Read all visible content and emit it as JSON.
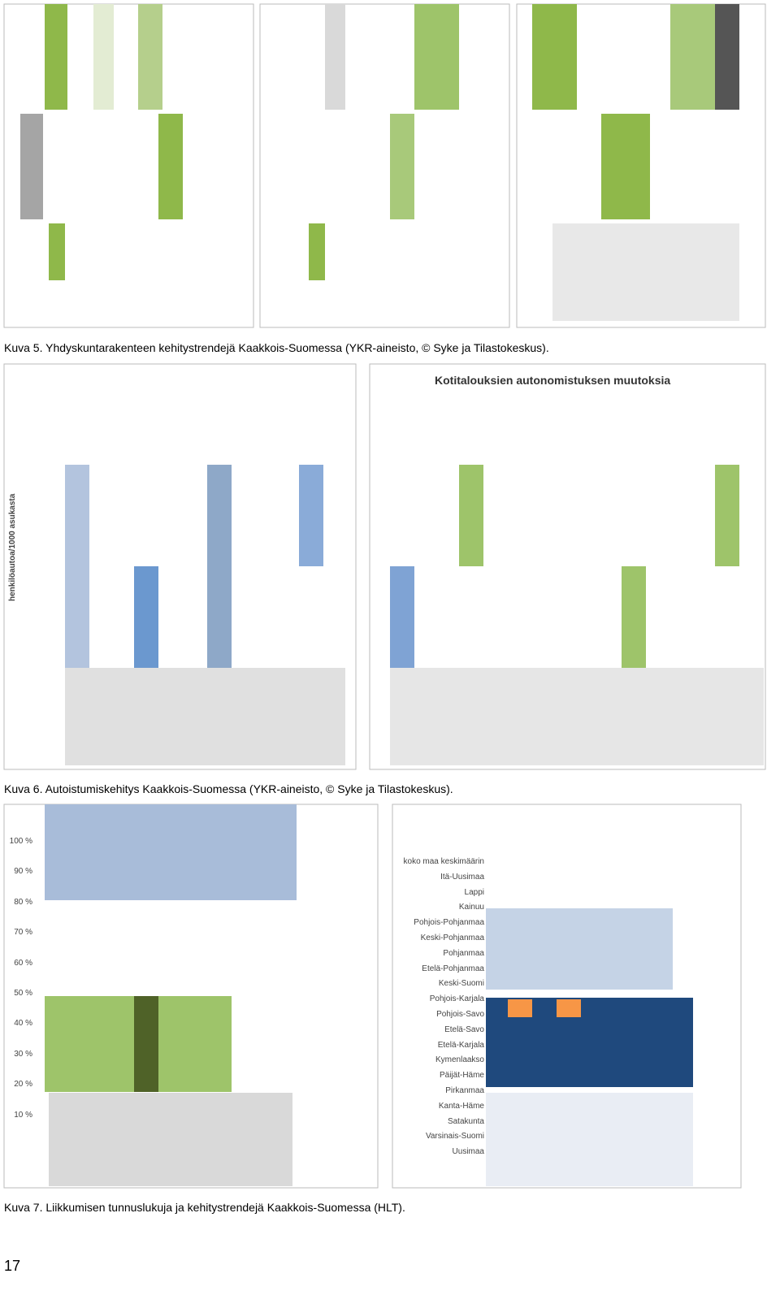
{
  "figure5": {
    "caption": "Kuva 5. Yhdyskuntarakenteen kehitystrendejä Kaakkois-Suomessa (YKR-aineisto, © Syke ja Tilastokeskus)."
  },
  "figure6": {
    "caption": "Kuva 6. Autoistumiskehitys Kaakkois-Suomessa (YKR-aineisto, © Syke ja Tilastokeskus).",
    "left_axis_label": "henkilöautoa/1000 asukasta",
    "right_title": "Kotitalouksien autonomistuksen muutoksia"
  },
  "figure7": {
    "caption": "Kuva 7. Liikkumisen tunnuslukuja ja kehitystrendejä Kaakkois-Suomessa (HLT).",
    "left_ticks": [
      "100 %",
      "90 %",
      "80 %",
      "70 %",
      "60 %",
      "50 %",
      "40 %",
      "30 %",
      "20 %",
      "10 %"
    ],
    "regions": [
      "koko maa keskimäärin",
      "Itä-Uusimaa",
      "Lappi",
      "Kainuu",
      "Pohjois-Pohjanmaa",
      "Keski-Pohjanmaa",
      "Pohjanmaa",
      "Etelä-Pohjanmaa",
      "Keski-Suomi",
      "Pohjois-Karjala",
      "Pohjois-Savo",
      "Etelä-Savo",
      "Etelä-Karjala",
      "Kymenlaakso",
      "Päijät-Häme",
      "Pirkanmaa",
      "Kanta-Häme",
      "Satakunta",
      "Varsinais-Suomi",
      "Uusimaa"
    ]
  },
  "page_number": "17"
}
